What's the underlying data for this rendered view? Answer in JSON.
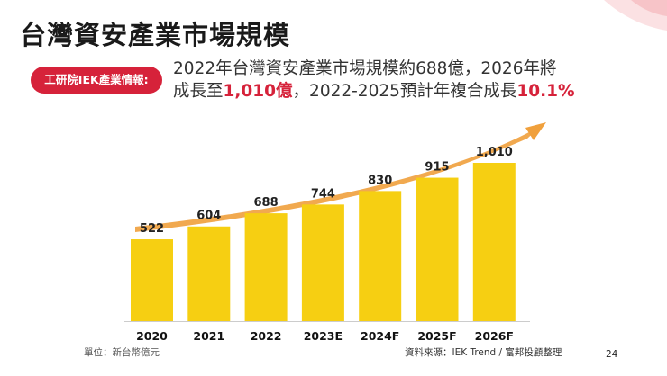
{
  "slide": {
    "title": "台灣資安產業市場規模",
    "badge": "工研院IEK產業情報:",
    "desc": {
      "line1": "2022年台灣資安產業市場規模約688億，2026年將",
      "line2_prefix": "成長至",
      "line2_hl1": "1,010億",
      "line2_mid": "，2022-2025預計年複合成長",
      "line2_hl2": "10.1%"
    },
    "unit": "單位：新台幣億元",
    "source": "資料來源：IEK Trend / 富邦投顧整理",
    "page_number": "24"
  },
  "colors": {
    "bar": "#f6cf12",
    "accent": "#d6223a",
    "arrow": "#f0a03c",
    "deco": "#f7c9cc"
  },
  "chart_data": {
    "type": "bar",
    "title": "台灣資安產業市場規模",
    "categories": [
      "2020",
      "2021",
      "2022",
      "2023E",
      "2024F",
      "2025F",
      "2026F"
    ],
    "values": [
      522,
      604,
      688,
      744,
      830,
      915,
      1010
    ],
    "value_labels": [
      "522",
      "604",
      "688",
      "744",
      "830",
      "915",
      "1,010"
    ],
    "ylabel": "新台幣億元",
    "ylim": [
      0,
      1010
    ],
    "grid": false,
    "trend_arrow": true
  }
}
